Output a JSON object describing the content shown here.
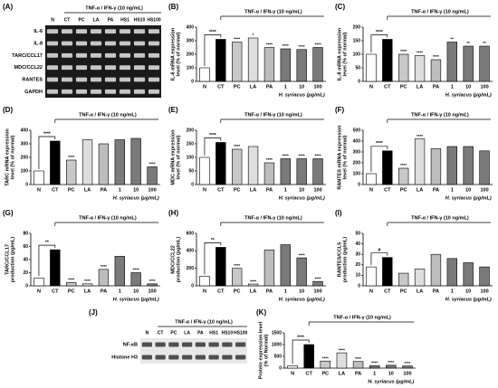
{
  "blots": [
    {
      "panel": "(A)",
      "header": "TNF-α / IFN-γ (10 ng/mL)",
      "lanes": [
        "N",
        "CT",
        "PC",
        "LA",
        "PA",
        "HS1",
        "HS10",
        "HS100"
      ],
      "rows": [
        "IL-6",
        "IL-8",
        "TARC/CCL17",
        "MDC/CCL22",
        "RANTES",
        "GAPDH"
      ]
    },
    {
      "panel": "(J)",
      "header": "TNF-α / IFN-γ (10 ng/mL)",
      "lanes": [
        "N",
        "CT",
        "PC",
        "LA",
        "PA",
        "HS1",
        "HS10",
        "HS100"
      ],
      "rows": [
        "NF-κB",
        "Histone H3"
      ]
    }
  ],
  "chart_data": [
    {
      "type": "bar",
      "panel": "(B)",
      "header": "TNF-α / IFN-γ (10 ng/mL)",
      "ylabel": [
        "IL-6 mRNA expression",
        "level (% of normal)"
      ],
      "xlabel": "H. syriacus (μg/mL)",
      "categories": [
        "N",
        "CT",
        "PC",
        "LA",
        "PA",
        "1",
        "10",
        "100"
      ],
      "values": [
        100,
        310,
        290,
        320,
        250,
        240,
        235,
        250
      ],
      "colors": [
        "#ffffff",
        "#000000",
        "#c8c8c8",
        "#dedede",
        "#bdbdbd",
        "#7a7a7a",
        "#7a7a7a",
        "#7a7a7a"
      ],
      "ylim": [
        0,
        400
      ],
      "yticks": [
        0,
        100,
        200,
        300,
        400
      ],
      "bar_labels": [
        null,
        null,
        "****",
        "*",
        "****",
        "****",
        "****",
        "****"
      ],
      "bracket_label": "****"
    },
    {
      "type": "bar",
      "panel": "(C)",
      "header": "TNF-α / IFN-γ (10 ng/mL)",
      "ylabel": [
        "IL-8 mRNA expression",
        "level (% of normal)"
      ],
      "xlabel": "H. syriacus (μg/mL)",
      "categories": [
        "N",
        "CT",
        "PC",
        "LA",
        "PA",
        "1",
        "10",
        "100"
      ],
      "values": [
        100,
        155,
        100,
        95,
        80,
        145,
        130,
        130
      ],
      "colors": [
        "#ffffff",
        "#000000",
        "#c8c8c8",
        "#dedede",
        "#bdbdbd",
        "#7a7a7a",
        "#7a7a7a",
        "#7a7a7a"
      ],
      "ylim": [
        0,
        200
      ],
      "yticks": [
        0,
        50,
        100,
        150,
        200
      ],
      "bar_labels": [
        null,
        null,
        "****",
        "****",
        "****",
        "**",
        "**",
        "**"
      ],
      "bracket_label": "****"
    },
    {
      "type": "bar",
      "panel": "(D)",
      "header": "TNF-α / IFN-γ (10 ng/mL)",
      "ylabel": [
        "TARC mRNA expression",
        "level (% of normal)"
      ],
      "xlabel": "H. syriacus (μg/mL)",
      "categories": [
        "N",
        "CT",
        "PC",
        "LA",
        "PA",
        "1",
        "10",
        "100"
      ],
      "values": [
        100,
        320,
        180,
        330,
        300,
        330,
        340,
        130
      ],
      "colors": [
        "#ffffff",
        "#000000",
        "#c8c8c8",
        "#dedede",
        "#bdbdbd",
        "#7a7a7a",
        "#7a7a7a",
        "#7a7a7a"
      ],
      "ylim": [
        0,
        400
      ],
      "yticks": [
        0,
        100,
        200,
        300,
        400
      ],
      "bar_labels": [
        null,
        null,
        "****",
        null,
        null,
        null,
        null,
        "****"
      ],
      "bracket_label": "****"
    },
    {
      "type": "bar",
      "panel": "(E)",
      "header": "TNF-α / IFN-γ (10 ng/mL)",
      "ylabel": [
        "MDC mRNA expression",
        "level (% of normal)"
      ],
      "xlabel": "H. syriacus (μg/mL)",
      "categories": [
        "N",
        "CT",
        "PC",
        "LA",
        "PA",
        "1",
        "10",
        "100"
      ],
      "values": [
        100,
        155,
        130,
        140,
        80,
        95,
        95,
        95
      ],
      "colors": [
        "#ffffff",
        "#000000",
        "#c8c8c8",
        "#dedede",
        "#bdbdbd",
        "#7a7a7a",
        "#7a7a7a",
        "#7a7a7a"
      ],
      "ylim": [
        0,
        200
      ],
      "yticks": [
        0,
        50,
        100,
        150,
        200
      ],
      "bar_labels": [
        null,
        null,
        "****",
        null,
        "****",
        "****",
        "****",
        "****"
      ],
      "bracket_label": "****"
    },
    {
      "type": "bar",
      "panel": "(F)",
      "header": "TNF-α / IFN-γ (10 ng/mL)",
      "ylabel": [
        "RANTES mRNA expression",
        "level (% of normal)"
      ],
      "xlabel": "H. syriacus (μg/mL)",
      "categories": [
        "N",
        "CT",
        "PC",
        "LA",
        "PA",
        "1",
        "10",
        "100"
      ],
      "values": [
        100,
        310,
        150,
        420,
        330,
        350,
        350,
        310
      ],
      "colors": [
        "#ffffff",
        "#000000",
        "#c8c8c8",
        "#dedede",
        "#bdbdbd",
        "#7a7a7a",
        "#7a7a7a",
        "#7a7a7a"
      ],
      "ylim": [
        0,
        500
      ],
      "yticks": [
        0,
        100,
        200,
        300,
        400,
        500
      ],
      "bar_labels": [
        null,
        null,
        "****",
        "****",
        null,
        null,
        null,
        null
      ],
      "bracket_label": "****"
    },
    {
      "type": "bar",
      "panel": "(G)",
      "header": "TNF-α / IFN-γ (10 ng/mL)",
      "ylabel": [
        "TARC/CCL17",
        "production (pg/mL)"
      ],
      "xlabel": "H. syriacus (μg/mL)",
      "categories": [
        "N",
        "CT",
        "PC",
        "LA",
        "PA",
        "1",
        "10",
        "100"
      ],
      "values": [
        12,
        55,
        5,
        3,
        25,
        45,
        20,
        3
      ],
      "colors": [
        "#ffffff",
        "#000000",
        "#c8c8c8",
        "#dedede",
        "#bdbdbd",
        "#7a7a7a",
        "#7a7a7a",
        "#7a7a7a"
      ],
      "ylim": [
        0,
        80
      ],
      "yticks": [
        0,
        20,
        40,
        60,
        80
      ],
      "bar_labels": [
        null,
        null,
        "****",
        "****",
        "****",
        null,
        "****",
        "****"
      ],
      "bracket_label": "**"
    },
    {
      "type": "bar",
      "panel": "(H)",
      "header": "TNF-α / IFN-γ (10 ng/mL)",
      "ylabel": [
        "MDC/CCL22",
        "production (pg/mL)"
      ],
      "xlabel": "H. syriacus (μg/mL)",
      "categories": [
        "N",
        "CT",
        "PC",
        "LA",
        "PA",
        "1",
        "10",
        "100"
      ],
      "values": [
        110,
        440,
        200,
        20,
        410,
        470,
        320,
        50
      ],
      "colors": [
        "#ffffff",
        "#000000",
        "#c8c8c8",
        "#dedede",
        "#bdbdbd",
        "#7a7a7a",
        "#7a7a7a",
        "#7a7a7a"
      ],
      "ylim": [
        0,
        600
      ],
      "yticks": [
        0,
        200,
        400,
        600
      ],
      "bar_labels": [
        null,
        null,
        "****",
        "****",
        null,
        null,
        "****",
        "****"
      ],
      "bracket_label": "**"
    },
    {
      "type": "bar",
      "panel": "(I)",
      "header": "TNF-α / IFN-γ (10 ng/mL)",
      "ylabel": [
        "RANTES/CCL5",
        "production (pg/mL)"
      ],
      "xlabel": "H. syriacus (μg/mL)",
      "categories": [
        "N",
        "CT",
        "PC",
        "LA",
        "PA",
        "1",
        "10",
        "100"
      ],
      "values": [
        18,
        27,
        12,
        16,
        30,
        26,
        22,
        18
      ],
      "colors": [
        "#ffffff",
        "#000000",
        "#c8c8c8",
        "#dedede",
        "#bdbdbd",
        "#7a7a7a",
        "#7a7a7a",
        "#7a7a7a"
      ],
      "ylim": [
        0,
        50
      ],
      "yticks": [
        0,
        10,
        20,
        30,
        40,
        50
      ],
      "bracket_label": "#"
    },
    {
      "type": "bar",
      "panel": "(K)",
      "header": "TNF-α / IFN-γ (10 ng/mL)",
      "ylabel": [
        "Protein expression level",
        "(% of Normal)"
      ],
      "xlabel": "H. syriacus (μg/mL)",
      "categories": [
        "N",
        "CT",
        "PC",
        "LA",
        "PA",
        "1",
        "10",
        "100"
      ],
      "values": [
        100,
        1000,
        300,
        650,
        280,
        100,
        120,
        90
      ],
      "colors": [
        "#ffffff",
        "#000000",
        "#c8c8c8",
        "#dedede",
        "#bdbdbd",
        "#7a7a7a",
        "#7a7a7a",
        "#7a7a7a"
      ],
      "ylim": [
        0,
        1500
      ],
      "yticks": [
        0,
        500,
        1000,
        1500
      ],
      "bar_labels": [
        null,
        null,
        "****",
        "****",
        "****",
        "****",
        "****",
        "****"
      ],
      "bracket_label": "****"
    }
  ]
}
